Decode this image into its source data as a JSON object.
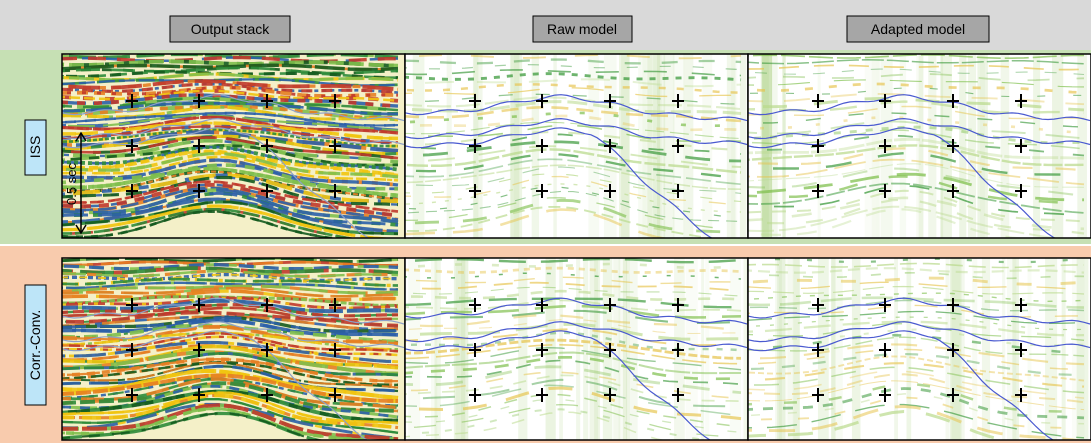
{
  "header": {
    "columns": [
      "Output stack",
      "Raw model",
      "Adapted model"
    ]
  },
  "rows": [
    {
      "label": "ISS"
    },
    {
      "label": "Corr.-Conv."
    }
  ],
  "scale_label": "0.5 sec"
}
